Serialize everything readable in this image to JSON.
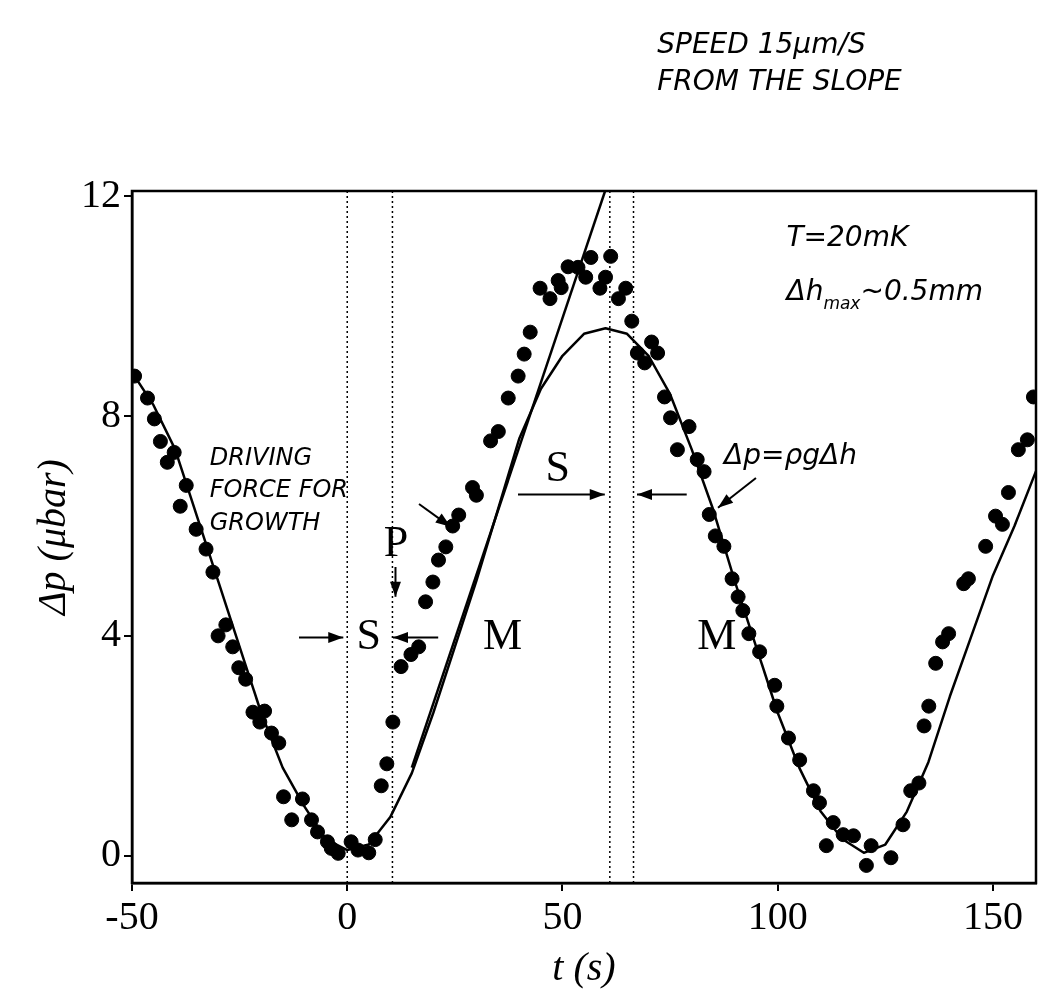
{
  "chart_data": {
    "type": "scatter",
    "xlabel": "t (s)",
    "ylabel": "Δp (μbar)",
    "xlim": [
      -50,
      160
    ],
    "ylim": [
      -0.5,
      12.1
    ],
    "xticks": [
      -50,
      0,
      50,
      100,
      150
    ],
    "yticks": [
      0,
      4,
      8,
      12
    ],
    "legend": false,
    "series": [
      {
        "color": "#000000",
        "marker": "circle",
        "x": [
          -49.4,
          -46.4,
          -44.8,
          -43.4,
          -40.2,
          -41.8,
          -37.4,
          -38.8,
          -35.1,
          -32.8,
          -31.2,
          -28.2,
          -30.0,
          -26.6,
          -25.2,
          -23.6,
          -21.9,
          -19.2,
          -20.3,
          -17.6,
          -15.9,
          -14.8,
          -12.9,
          -10.4,
          -8.3,
          -6.9,
          -4.6,
          -3.7,
          -2.1,
          0.9,
          2.5,
          5.0,
          6.5,
          7.9,
          9.2,
          10.6,
          12.5,
          14.8,
          16.6,
          18.2,
          19.9,
          21.2,
          22.9,
          24.5,
          25.9,
          29.1,
          30.0,
          33.3,
          35.1,
          37.4,
          39.7,
          41.1,
          42.5,
          44.8,
          47.1,
          49.0,
          51.3,
          53.6,
          56.6,
          61.2,
          55.4,
          49.7,
          58.7,
          60.0,
          64.7,
          63.0,
          66.1,
          70.7,
          72.1,
          67.4,
          69.1,
          73.7,
          75.1,
          79.4,
          76.7,
          81.3,
          82.9,
          84.1,
          85.5,
          87.5,
          89.4,
          90.8,
          91.9,
          93.3,
          95.8,
          99.3,
          99.8,
          102.5,
          105.1,
          108.3,
          109.7,
          112.9,
          115.2,
          117.6,
          111.3,
          121.7,
          120.6,
          126.3,
          129.1,
          130.9,
          132.8,
          134.0,
          135.1,
          136.7,
          139.7,
          138.3,
          143.2,
          144.3,
          148.3,
          150.6,
          152.2,
          153.6,
          155.9,
          158.0,
          159.4
        ],
        "values": [
          8.73,
          8.33,
          7.95,
          7.54,
          7.34,
          7.16,
          6.74,
          6.36,
          5.94,
          5.58,
          5.16,
          4.2,
          4.0,
          3.8,
          3.42,
          3.21,
          2.61,
          2.63,
          2.43,
          2.23,
          2.05,
          1.07,
          0.65,
          1.03,
          0.65,
          0.43,
          0.25,
          0.13,
          0.04,
          0.25,
          0.1,
          0.05,
          0.29,
          1.27,
          1.67,
          2.43,
          3.44,
          3.66,
          3.8,
          4.62,
          4.98,
          5.38,
          5.62,
          6.0,
          6.2,
          6.7,
          6.56,
          7.55,
          7.72,
          8.33,
          8.73,
          9.13,
          9.53,
          10.33,
          10.14,
          10.47,
          10.72,
          10.71,
          10.89,
          10.91,
          10.53,
          10.34,
          10.33,
          10.53,
          10.33,
          10.14,
          9.73,
          9.35,
          9.15,
          9.15,
          8.97,
          8.35,
          7.97,
          7.81,
          7.39,
          7.21,
          6.99,
          6.21,
          5.82,
          5.63,
          5.04,
          4.71,
          4.46,
          4.04,
          3.71,
          3.1,
          2.72,
          2.14,
          1.74,
          1.18,
          0.96,
          0.6,
          0.38,
          0.36,
          0.18,
          0.18,
          -0.18,
          -0.04,
          0.56,
          1.18,
          1.32,
          2.36,
          2.72,
          3.5,
          4.04,
          3.89,
          4.95,
          5.04,
          5.63,
          6.18,
          6.03,
          6.61,
          7.39,
          7.57,
          8.35
        ]
      },
      {
        "type": "line",
        "color": "#000000",
        "line_style": "solid",
        "x": [
          -50,
          -45,
          -40,
          -35,
          -30,
          -25,
          -20,
          -15,
          -10,
          -5,
          0,
          5,
          10,
          15,
          20,
          25,
          30,
          35,
          40,
          45,
          50,
          55,
          60,
          65,
          70,
          75,
          80,
          85,
          90,
          95,
          100,
          105,
          110,
          115,
          120,
          125,
          130,
          135,
          140,
          145,
          150,
          155,
          160
        ],
        "values": [
          8.8,
          8.2,
          7.4,
          6.2,
          5.0,
          3.8,
          2.6,
          1.6,
          0.9,
          0.3,
          0.1,
          0.2,
          0.7,
          1.5,
          2.6,
          3.8,
          5.0,
          6.3,
          7.6,
          8.5,
          9.1,
          9.5,
          9.6,
          9.5,
          9.1,
          8.4,
          7.4,
          6.3,
          5.0,
          3.8,
          2.6,
          1.6,
          0.8,
          0.3,
          0.05,
          0.2,
          0.8,
          1.7,
          2.9,
          4.0,
          5.1,
          6.0,
          7.0
        ]
      },
      {
        "type": "line",
        "color": "#000000",
        "line_style": "solid",
        "x": [
          15,
          59.9
        ],
        "values": [
          1.6,
          12.1
        ]
      }
    ],
    "ref_lines": [
      {
        "axis": "x",
        "value": 0,
        "line_style": "dotted"
      },
      {
        "axis": "x",
        "value": 10.5,
        "line_style": "dotted"
      },
      {
        "axis": "x",
        "value": 61,
        "line_style": "dotted"
      },
      {
        "axis": "x",
        "value": 66.5,
        "line_style": "dotted"
      }
    ],
    "annotations": [
      "SPEED 15μm/S FROM THE SLOPE",
      "T=20mK",
      "Δh$_{max}$~0.5mm",
      "S",
      "P",
      "M",
      "M",
      "S",
      "DRIVING FORCE FOR GROWTH",
      "Δp=ρgΔh"
    ]
  }
}
